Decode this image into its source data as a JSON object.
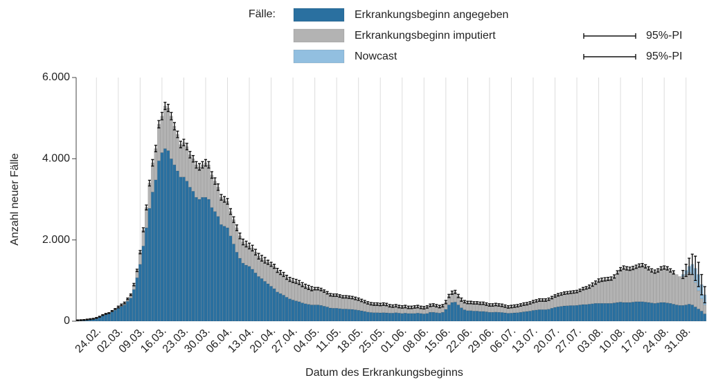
{
  "chart_data": {
    "type": "stacked-bar-errorbar",
    "legend_title": "Fälle:",
    "xlabel": "Datum des Erkrankungsbeginns",
    "ylabel": "Anzahl neuer Fälle",
    "ylim": [
      0,
      6000
    ],
    "yticks": [
      0,
      {
        "value": 2000,
        "label": "2.000"
      },
      {
        "value": 4000,
        "label": "4.000"
      },
      {
        "value": 6000,
        "label": "6.000"
      }
    ],
    "grid": true,
    "categories": [
      null,
      null,
      null,
      null,
      null,
      null,
      "24.02.",
      null,
      null,
      null,
      null,
      null,
      null,
      "02.03.",
      null,
      null,
      null,
      null,
      null,
      null,
      "09.03.",
      null,
      null,
      null,
      null,
      null,
      null,
      "16.03.",
      null,
      null,
      null,
      null,
      null,
      null,
      "23.03.",
      null,
      null,
      null,
      null,
      null,
      null,
      "30.03.",
      null,
      null,
      null,
      null,
      null,
      null,
      "06.04.",
      null,
      null,
      null,
      null,
      null,
      null,
      "13.04.",
      null,
      null,
      null,
      null,
      null,
      null,
      "20.04.",
      null,
      null,
      null,
      null,
      null,
      null,
      "27.04.",
      null,
      null,
      null,
      null,
      null,
      null,
      "04.05.",
      null,
      null,
      null,
      null,
      null,
      null,
      "11.05.",
      null,
      null,
      null,
      null,
      null,
      null,
      "18.05.",
      null,
      null,
      null,
      null,
      null,
      null,
      "25.05.",
      null,
      null,
      null,
      null,
      null,
      null,
      "01.06.",
      null,
      null,
      null,
      null,
      null,
      null,
      "08.06.",
      null,
      null,
      null,
      null,
      null,
      null,
      "15.06.",
      null,
      null,
      null,
      null,
      null,
      null,
      "22.06.",
      null,
      null,
      null,
      null,
      null,
      null,
      "29.06.",
      null,
      null,
      null,
      null,
      null,
      null,
      "06.07.",
      null,
      null,
      null,
      null,
      null,
      null,
      "13.07.",
      null,
      null,
      null,
      null,
      null,
      null,
      "20.07.",
      null,
      null,
      null,
      null,
      null,
      null,
      "27.07.",
      null,
      null,
      null,
      null,
      null,
      null,
      "03.08.",
      null,
      null,
      null,
      null,
      null,
      null,
      "10.08.",
      null,
      null,
      null,
      null,
      null,
      null,
      "17.08.",
      null,
      null,
      null,
      null,
      null,
      null,
      "24.08.",
      null,
      null,
      null,
      null,
      null,
      null,
      "31.08.",
      null,
      null,
      null,
      null,
      null,
      null
    ],
    "series": [
      {
        "name": "Erkrankungsbeginn angegeben",
        "color": "#2a70a0",
        "values": [
          18,
          22,
          27,
          36,
          45,
          54,
          72,
          99,
          135,
          162,
          180,
          225,
          270,
          315,
          360,
          400,
          490,
          570,
          780,
          1070,
          1400,
          1850,
          2300,
          2780,
          3180,
          3480,
          3950,
          4150,
          4250,
          4200,
          4000,
          3850,
          3700,
          3550,
          3550,
          3450,
          3300,
          3200,
          3050,
          3000,
          3050,
          3050,
          3000,
          2800,
          2700,
          2580,
          2380,
          2340,
          2300,
          2100,
          1900,
          1700,
          1550,
          1430,
          1380,
          1350,
          1280,
          1190,
          1100,
          1050,
          980,
          920,
          860,
          800,
          720,
          680,
          640,
          590,
          550,
          520,
          500,
          480,
          450,
          430,
          415,
          400,
          400,
          400,
          390,
          370,
          350,
          325,
          320,
          320,
          310,
          300,
          300,
          295,
          290,
          280,
          270,
          255,
          240,
          225,
          215,
          210,
          210,
          205,
          210,
          205,
          200,
          200,
          210,
          200,
          190,
          200,
          190,
          190,
          190,
          200,
          190,
          180,
          190,
          220,
          220,
          210,
          200,
          220,
          290,
          400,
          460,
          470,
          400,
          330,
          280,
          260,
          260,
          250,
          250,
          240,
          240,
          230,
          220,
          220,
          225,
          220,
          215,
          205,
          195,
          200,
          205,
          210,
          220,
          230,
          240,
          250,
          265,
          275,
          285,
          285,
          285,
          295,
          320,
          340,
          355,
          365,
          375,
          380,
          385,
          385,
          390,
          400,
          410,
          410,
          420,
          430,
          440,
          440,
          440,
          440,
          440,
          440,
          450,
          460,
          470,
          460,
          460,
          460,
          470,
          480,
          480,
          480,
          470,
          460,
          450,
          440,
          450,
          460,
          460,
          450,
          440,
          420,
          400,
          390,
          390,
          400,
          420,
          400,
          350,
          300,
          250,
          180
        ]
      },
      {
        "name": "Erkrankungsbeginn imputiert",
        "color": "#b3b3b3",
        "interval_label": "95%-PI",
        "values": [
          2,
          3,
          3,
          4,
          5,
          6,
          8,
          11,
          15,
          18,
          20,
          25,
          30,
          35,
          40,
          50,
          60,
          80,
          120,
          180,
          300,
          400,
          500,
          620,
          720,
          770,
          900,
          900,
          1050,
          1050,
          1050,
          950,
          900,
          800,
          850,
          850,
          800,
          800,
          800,
          800,
          800,
          850,
          850,
          800,
          750,
          720,
          670,
          660,
          650,
          600,
          600,
          600,
          550,
          520,
          520,
          500,
          520,
          510,
          500,
          500,
          520,
          530,
          540,
          550,
          530,
          520,
          510,
          490,
          480,
          480,
          480,
          470,
          450,
          430,
          415,
          400,
          400,
          400,
          390,
          370,
          350,
          325,
          320,
          320,
          310,
          300,
          300,
          295,
          290,
          280,
          270,
          255,
          240,
          225,
          215,
          210,
          210,
          205,
          210,
          205,
          180,
          170,
          170,
          160,
          160,
          160,
          150,
          150,
          160,
          160,
          150,
          150,
          160,
          170,
          180,
          170,
          160,
          160,
          180,
          220,
          240,
          250,
          220,
          200,
          200,
          200,
          200,
          200,
          200,
          200,
          200,
          190,
          180,
          180,
          185,
          180,
          175,
          165,
          155,
          160,
          165,
          170,
          180,
          190,
          190,
          200,
          215,
          225,
          235,
          235,
          235,
          245,
          260,
          280,
          295,
          305,
          315,
          320,
          325,
          335,
          340,
          360,
          390,
          410,
          430,
          470,
          510,
          560,
          580,
          590,
          600,
          610,
          650,
          740,
          810,
          860,
          840,
          830,
          840,
          860,
          890,
          900,
          880,
          840,
          800,
          780,
          800,
          840,
          860,
          850,
          810,
          780,
          750,
          710,
          710,
          750,
          780,
          750,
          600,
          450,
          300,
          220
        ],
        "errors": [
          10,
          10,
          10,
          10,
          10,
          10,
          10,
          10,
          10,
          10,
          10,
          10,
          10,
          20,
          20,
          20,
          20,
          20,
          30,
          30,
          40,
          50,
          60,
          70,
          80,
          80,
          90,
          90,
          90,
          90,
          90,
          90,
          80,
          80,
          80,
          80,
          80,
          80,
          80,
          80,
          80,
          80,
          80,
          80,
          80,
          80,
          70,
          70,
          70,
          70,
          70,
          70,
          70,
          70,
          70,
          70,
          70,
          70,
          70,
          70,
          70,
          50,
          50,
          50,
          50,
          50,
          50,
          50,
          50,
          50,
          50,
          50,
          50,
          50,
          50,
          50,
          30,
          30,
          30,
          30,
          30,
          30,
          30,
          30,
          30,
          30,
          30,
          30,
          30,
          30,
          30,
          30,
          30,
          30,
          30,
          30,
          30,
          30,
          30,
          30,
          30,
          30,
          30,
          30,
          30,
          30,
          30,
          30,
          30,
          30,
          30,
          30,
          30,
          30,
          30,
          30,
          30,
          30,
          40,
          40,
          40,
          40,
          40,
          40,
          30,
          30,
          30,
          30,
          30,
          30,
          30,
          30,
          30,
          30,
          30,
          30,
          30,
          30,
          30,
          30,
          30,
          30,
          30,
          30,
          30,
          30,
          30,
          30,
          30,
          30,
          30,
          30,
          30,
          30,
          30,
          30,
          30,
          30,
          30,
          30,
          30,
          30,
          30,
          30,
          40,
          40,
          40,
          40,
          40,
          40,
          40,
          40,
          40,
          40,
          40,
          40,
          40,
          40,
          40,
          40,
          40,
          40,
          40,
          40,
          40,
          40,
          40,
          40,
          40,
          40,
          40,
          40,
          null,
          null,
          null,
          null,
          null,
          null,
          null,
          null
        ]
      },
      {
        "name": "Nowcast",
        "color": "#92bfe0",
        "interval_label": "95%-PI",
        "values": [
          null,
          null,
          null,
          null,
          null,
          null,
          null,
          null,
          null,
          null,
          null,
          null,
          null,
          null,
          null,
          null,
          null,
          null,
          null,
          null,
          null,
          null,
          null,
          null,
          null,
          null,
          null,
          null,
          null,
          null,
          null,
          null,
          null,
          null,
          null,
          null,
          null,
          null,
          null,
          null,
          null,
          null,
          null,
          null,
          null,
          null,
          null,
          null,
          null,
          null,
          null,
          null,
          null,
          null,
          null,
          null,
          null,
          null,
          null,
          null,
          null,
          null,
          null,
          null,
          null,
          null,
          null,
          null,
          null,
          null,
          null,
          null,
          null,
          null,
          null,
          null,
          null,
          null,
          null,
          null,
          null,
          null,
          null,
          null,
          null,
          null,
          null,
          null,
          null,
          null,
          null,
          null,
          null,
          null,
          null,
          null,
          null,
          null,
          null,
          null,
          null,
          null,
          null,
          null,
          null,
          null,
          null,
          null,
          null,
          null,
          null,
          null,
          null,
          null,
          null,
          null,
          null,
          null,
          null,
          null,
          null,
          null,
          null,
          null,
          null,
          null,
          null,
          null,
          null,
          null,
          null,
          null,
          null,
          null,
          null,
          null,
          null,
          null,
          null,
          null,
          null,
          null,
          null,
          null,
          null,
          null,
          null,
          null,
          null,
          null,
          null,
          null,
          null,
          null,
          null,
          null,
          null,
          null,
          null,
          null,
          null,
          null,
          null,
          null,
          null,
          null,
          null,
          null,
          null,
          null,
          null,
          null,
          null,
          null,
          null,
          null,
          null,
          null,
          null,
          null,
          null,
          null,
          null,
          null,
          null,
          null,
          null,
          null,
          null,
          null,
          null,
          null,
          null,
          null,
          50,
          100,
          150,
          250,
          350,
          400,
          350,
          250
        ],
        "errors": [
          null,
          null,
          null,
          null,
          null,
          null,
          null,
          null,
          null,
          null,
          null,
          null,
          null,
          null,
          null,
          null,
          null,
          null,
          null,
          null,
          null,
          null,
          null,
          null,
          null,
          null,
          null,
          null,
          null,
          null,
          null,
          null,
          null,
          null,
          null,
          null,
          null,
          null,
          null,
          null,
          null,
          null,
          null,
          null,
          null,
          null,
          null,
          null,
          null,
          null,
          null,
          null,
          null,
          null,
          null,
          null,
          null,
          null,
          null,
          null,
          null,
          null,
          null,
          null,
          null,
          null,
          null,
          null,
          null,
          null,
          null,
          null,
          null,
          null,
          null,
          null,
          null,
          null,
          null,
          null,
          null,
          null,
          null,
          null,
          null,
          null,
          null,
          null,
          null,
          null,
          null,
          null,
          null,
          null,
          null,
          null,
          null,
          null,
          null,
          null,
          null,
          null,
          null,
          null,
          null,
          null,
          null,
          null,
          null,
          null,
          null,
          null,
          null,
          null,
          null,
          null,
          null,
          null,
          null,
          null,
          null,
          null,
          null,
          null,
          null,
          null,
          null,
          null,
          null,
          null,
          null,
          null,
          null,
          null,
          null,
          null,
          null,
          null,
          null,
          null,
          null,
          null,
          null,
          null,
          null,
          null,
          null,
          null,
          null,
          null,
          null,
          null,
          null,
          null,
          null,
          null,
          null,
          null,
          null,
          null,
          null,
          null,
          null,
          null,
          null,
          null,
          null,
          null,
          null,
          null,
          null,
          null,
          null,
          null,
          null,
          null,
          null,
          null,
          null,
          null,
          null,
          null,
          null,
          null,
          null,
          null,
          null,
          null,
          null,
          null,
          null,
          null,
          null,
          null,
          100,
          150,
          200,
          250,
          300,
          300,
          250,
          200
        ]
      }
    ]
  }
}
